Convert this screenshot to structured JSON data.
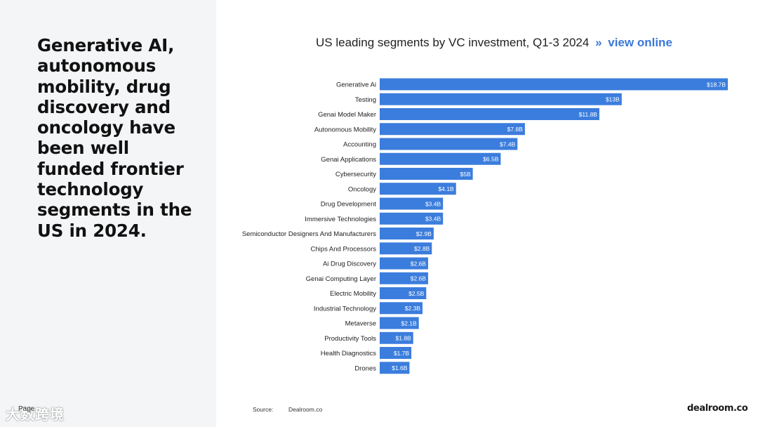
{
  "headline": "Generative AI, autonomous mobility, drug discovery and oncology have been well funded frontier technology segments in the US in 2024.",
  "page_label": "Page",
  "watermark": "大数跨境",
  "chart_header": {
    "title": "US leading segments by VC investment, Q1-3 2024",
    "separator": "»",
    "link_text": "view online"
  },
  "footer": {
    "source_label": "Source:",
    "source": "Dealroom.co",
    "brand": "dealroom.co"
  },
  "colors": {
    "bar": "#3b7ddd",
    "link": "#3a78d8",
    "left_panel": "#f4f5f7"
  },
  "chart_data": {
    "type": "bar",
    "orientation": "horizontal",
    "title": "US leading segments by VC investment, Q1-3 2024",
    "xlabel": "",
    "ylabel": "",
    "xlim": [
      0,
      18.7
    ],
    "grid": false,
    "categories": [
      "Generative Ai",
      "Testing",
      "Genai Model Maker",
      "Autonomous Mobility",
      "Accounting",
      "Genai Applications",
      "Cybersecurity",
      "Oncology",
      "Drug Development",
      "Immersive Technologies",
      "Semiconductor Designers And Manufacturers",
      "Chips And Processors",
      "Ai Drug Discovery",
      "Genai Computing Layer",
      "Electric Mobility",
      "Industrial Technology",
      "Metaverse",
      "Productivity Tools",
      "Health Diagnostics",
      "Drones"
    ],
    "values": [
      18.7,
      13,
      11.8,
      7.8,
      7.4,
      6.5,
      5,
      4.1,
      3.4,
      3.4,
      2.9,
      2.8,
      2.6,
      2.6,
      2.5,
      2.3,
      2.1,
      1.8,
      1.7,
      1.6
    ],
    "labels": [
      "$18.7B",
      "$13B",
      "$11.8B",
      "$7.8B",
      "$7.4B",
      "$6.5B",
      "$5B",
      "$4.1B",
      "$3.4B",
      "$3.4B",
      "$2.9B",
      "$2.8B",
      "$2.6B",
      "$2.6B",
      "$2.5B",
      "$2.3B",
      "$2.1B",
      "$1.8B",
      "$1.7B",
      "$1.6B"
    ],
    "unit": "USD billions"
  }
}
